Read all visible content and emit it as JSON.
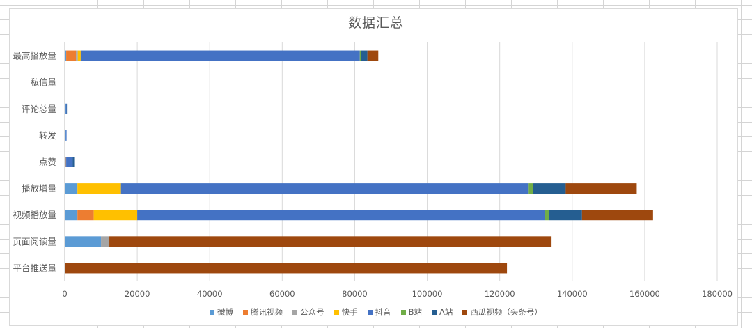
{
  "chart_data": {
    "type": "bar",
    "orientation": "horizontal",
    "stacked": true,
    "title": "数据汇总",
    "xlabel": "",
    "ylabel": "",
    "xlim": [
      0,
      180000
    ],
    "xticks": [
      0,
      20000,
      40000,
      60000,
      80000,
      100000,
      120000,
      140000,
      160000,
      180000
    ],
    "grid": true,
    "legend_position": "bottom",
    "categories": [
      "最高播放量",
      "私信量",
      "评论总量",
      "转发",
      "点赞",
      "播放增量",
      "视频播放量",
      "页面阅读量",
      "平台推送量"
    ],
    "series": [
      {
        "name": "微博",
        "color": "#5B9BD5",
        "values": [
          400,
          0,
          300,
          300,
          300,
          3500,
          3500,
          10000,
          0
        ]
      },
      {
        "name": "腾讯视频",
        "color": "#ED7D31",
        "values": [
          2700,
          0,
          0,
          0,
          100,
          0,
          4500,
          0,
          0
        ]
      },
      {
        "name": "公众号",
        "color": "#A5A5A5",
        "values": [
          500,
          0,
          0,
          0,
          0,
          0,
          0,
          2300,
          0
        ]
      },
      {
        "name": "快手",
        "color": "#FFC000",
        "values": [
          800,
          0,
          0,
          0,
          0,
          12000,
          12000,
          0,
          0
        ]
      },
      {
        "name": "抖音",
        "color": "#4472C4",
        "values": [
          77000,
          0,
          200,
          200,
          1800,
          112500,
          112500,
          0,
          0
        ]
      },
      {
        "name": "B站",
        "color": "#70AD47",
        "values": [
          400,
          0,
          0,
          0,
          0,
          1200,
          1200,
          0,
          0
        ]
      },
      {
        "name": "A站",
        "color": "#255E91",
        "values": [
          1700,
          0,
          100,
          0,
          400,
          9000,
          9000,
          0,
          0
        ]
      },
      {
        "name": "西瓜视频（头条号）",
        "color": "#9E480E",
        "values": [
          3000,
          0,
          0,
          0,
          0,
          19600,
          19600,
          122000,
          122000
        ]
      }
    ]
  }
}
